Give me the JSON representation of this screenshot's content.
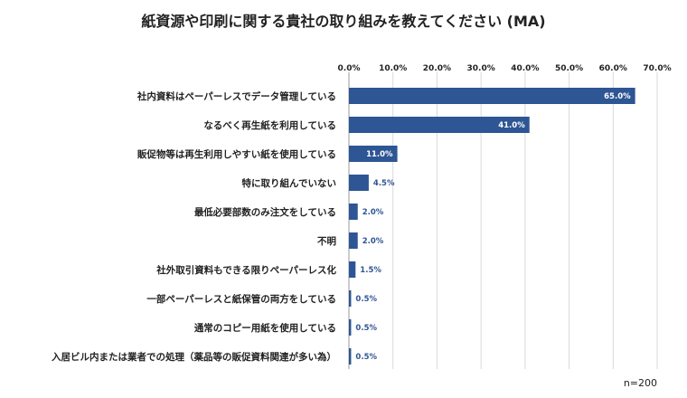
{
  "chart_data": {
    "type": "bar",
    "orientation": "horizontal",
    "title": "紙資源や印刷に関する貴社の取り組みを教えてください (MA)",
    "xlim": [
      0,
      70
    ],
    "ticks": [
      0,
      10,
      20,
      30,
      40,
      50,
      60,
      70
    ],
    "tick_labels": [
      "0.0%",
      "10.0%",
      "20.0%",
      "30.0%",
      "40.0%",
      "50.0%",
      "60.0%",
      "70.0%"
    ],
    "grid": true,
    "bar_color": "#2e5594",
    "categories": [
      "社内資料はペーパーレスでデータ管理している",
      "なるべく再生紙を利用している",
      "販促物等は再生利用しやすい紙を使用している",
      "特に取り組んでいない",
      "最低必要部数のみ注文をしている",
      "不明",
      "社外取引資料もできる限りペーパーレス化",
      "一部ペーパーレスと紙保管の両方をしている",
      "通常のコピー用紙を使用している",
      "入居ビル内または業者での処理（薬品等の販促資料関連が多い為）"
    ],
    "values": [
      65.0,
      41.0,
      11.0,
      4.5,
      2.0,
      2.0,
      1.5,
      0.5,
      0.5,
      0.5
    ],
    "data_labels": [
      "65.0%",
      "41.0%",
      "11.0%",
      "4.5%",
      "2.0%",
      "2.0%",
      "1.5%",
      "0.5%",
      "0.5%",
      "0.5%"
    ],
    "note": "n=200"
  }
}
